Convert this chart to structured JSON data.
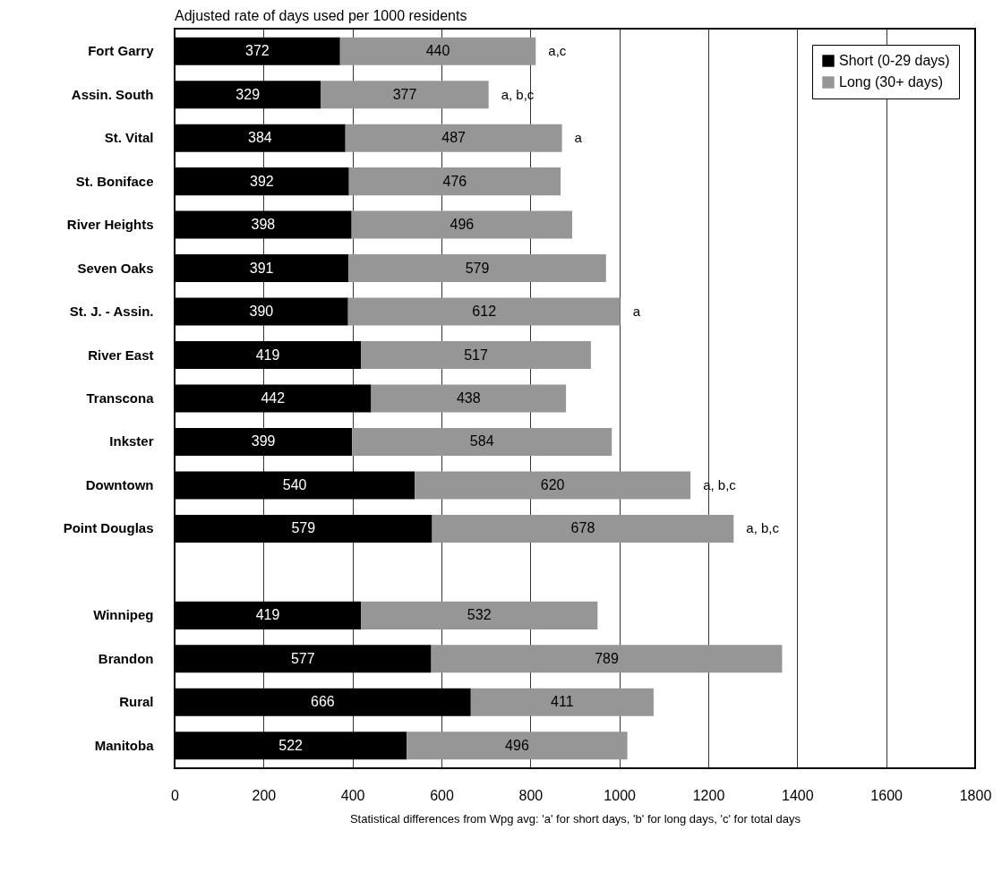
{
  "chart_data": {
    "type": "bar",
    "orientation": "horizontal",
    "stacked": true,
    "title": "Adjusted rate of days used per 1000 residents",
    "categories": [
      "Fort Garry",
      "Assin. South",
      "St. Vital",
      "St. Boniface",
      "River Heights",
      "Seven Oaks",
      "St. J. - Assin.",
      "River East",
      "Transcona",
      "Inkster",
      "Downtown",
      "Point Douglas",
      null,
      "Winnipeg",
      "Brandon",
      "Rural",
      "Manitoba"
    ],
    "series": [
      {
        "name": "Short (0-29 days)",
        "color": "#000000",
        "values": [
          372,
          329,
          384,
          392,
          398,
          391,
          390,
          419,
          442,
          399,
          540,
          579,
          null,
          419,
          577,
          666,
          522
        ]
      },
      {
        "name": "Long (30+ days)",
        "color": "#969696",
        "values": [
          440,
          377,
          487,
          476,
          496,
          579,
          612,
          517,
          438,
          584,
          620,
          678,
          null,
          532,
          789,
          411,
          496
        ]
      }
    ],
    "data_labels": true,
    "xlim": [
      0,
      1800
    ],
    "xticks": [
      0,
      200,
      400,
      600,
      800,
      1000,
      1200,
      1400,
      1600,
      1800
    ],
    "grid": "x",
    "legend": "top right",
    "annotations": [
      {
        "text": "a,c",
        "x": 812,
        "y": "Fort Garry"
      },
      {
        "text": "a, b,c",
        "x": 706,
        "y": "Assin. South"
      },
      {
        "text": "a",
        "x": 871,
        "y": "St. Vital"
      },
      {
        "text": "a",
        "x": 1002,
        "y": "St. J. - Assin."
      },
      {
        "text": "a, b,c",
        "x": 1160,
        "y": "Downtown"
      },
      {
        "text": "a, b,c",
        "x": 1257,
        "y": "Point Douglas"
      },
      "Statistical differences from Wpg avg: 'a' for short days, 'b' for long days, 'c' for total days"
    ]
  }
}
